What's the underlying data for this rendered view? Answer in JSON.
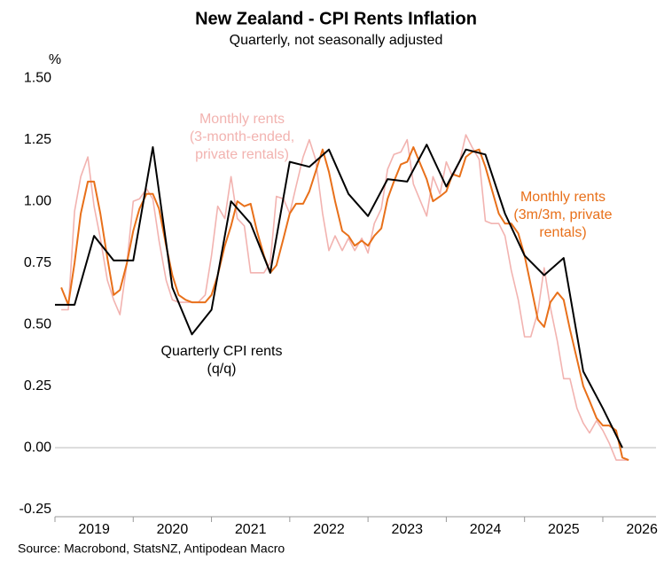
{
  "chart_data": {
    "type": "line",
    "title": "New Zealand - CPI Rents Inflation",
    "subtitle": "Quarterly, not seasonally adjusted",
    "y_label": "%",
    "source": "Source: Macrobond, StatsNZ, Antipodean Macro",
    "xlim": [
      2019,
      2026.68
    ],
    "xticks": [
      {
        "value": 2019.5,
        "label": "2019"
      },
      {
        "value": 2020.5,
        "label": "2020"
      },
      {
        "value": 2021.5,
        "label": "2021"
      },
      {
        "value": 2022.5,
        "label": "2022"
      },
      {
        "value": 2023.5,
        "label": "2023"
      },
      {
        "value": 2024.5,
        "label": "2024"
      },
      {
        "value": 2025.5,
        "label": "2025"
      },
      {
        "value": 2026.5,
        "label": "2026"
      }
    ],
    "ylim": [
      -0.28,
      1.54
    ],
    "yticks": [
      {
        "value": 1.5,
        "label": "1.50"
      },
      1.25,
      {
        "value": 1.0,
        "label": "1.00"
      },
      0.75,
      {
        "value": 0.5,
        "label": "0.50"
      },
      0.25,
      {
        "value": 0,
        "label": "0.00"
      },
      -0.25
    ],
    "zero_line": true,
    "series": [
      {
        "name": "Monthly rents (3-month-ended, private rentals)",
        "color": "#f2b3b0",
        "width": 1.6,
        "x": [
          2019.08,
          2019.17,
          2019.25,
          2019.33,
          2019.42,
          2019.5,
          2019.58,
          2019.67,
          2019.75,
          2019.83,
          2019.92,
          2020,
          2020.08,
          2020.17,
          2020.25,
          2020.33,
          2020.42,
          2020.5,
          2020.58,
          2020.67,
          2020.75,
          2020.83,
          2020.92,
          2021,
          2021.08,
          2021.17,
          2021.25,
          2021.33,
          2021.42,
          2021.5,
          2021.58,
          2021.67,
          2021.75,
          2021.83,
          2021.92,
          2022,
          2022.08,
          2022.17,
          2022.25,
          2022.33,
          2022.42,
          2022.5,
          2022.58,
          2022.67,
          2022.75,
          2022.83,
          2022.92,
          2023,
          2023.08,
          2023.17,
          2023.25,
          2023.33,
          2023.42,
          2023.5,
          2023.58,
          2023.67,
          2023.75,
          2023.83,
          2023.92,
          2024,
          2024.08,
          2024.17,
          2024.25,
          2024.33,
          2024.42,
          2024.5,
          2024.58,
          2024.67,
          2024.75,
          2024.83,
          2024.92,
          2025,
          2025.08,
          2025.17,
          2025.25,
          2025.33,
          2025.42,
          2025.5,
          2025.58,
          2025.67,
          2025.75,
          2025.83,
          2025.92,
          2026,
          2026.08,
          2026.17,
          2026.25,
          2026.33
        ],
        "values": [
          0.56,
          0.56,
          0.96,
          1.1,
          1.18,
          0.98,
          0.85,
          0.68,
          0.6,
          0.54,
          0.75,
          1.0,
          1.01,
          1.05,
          1.01,
          0.84,
          0.68,
          0.6,
          0.59,
          0.59,
          0.59,
          0.59,
          0.62,
          0.78,
          0.98,
          0.93,
          1.1,
          0.93,
          0.9,
          0.71,
          0.71,
          0.71,
          0.75,
          1.02,
          1.01,
          0.95,
          1.06,
          1.18,
          1.25,
          1.17,
          0.95,
          0.8,
          0.86,
          0.8,
          0.85,
          0.8,
          0.85,
          0.79,
          0.91,
          0.97,
          1.13,
          1.19,
          1.2,
          1.25,
          1.07,
          1.0,
          0.94,
          1.1,
          1.03,
          1.16,
          1.1,
          1.16,
          1.27,
          1.22,
          1.17,
          0.92,
          0.91,
          0.91,
          0.86,
          0.72,
          0.6,
          0.45,
          0.45,
          0.55,
          0.73,
          0.57,
          0.43,
          0.28,
          0.28,
          0.16,
          0.1,
          0.06,
          0.11,
          0.07,
          0.02,
          -0.05,
          -0.05,
          -0.05
        ]
      },
      {
        "name": "Monthly rents (3m/3m, private rentals)",
        "color": "#e8701a",
        "width": 2,
        "x": [
          2019.08,
          2019.17,
          2019.25,
          2019.33,
          2019.42,
          2019.5,
          2019.58,
          2019.67,
          2019.75,
          2019.83,
          2019.92,
          2020,
          2020.08,
          2020.17,
          2020.25,
          2020.33,
          2020.42,
          2020.5,
          2020.58,
          2020.67,
          2020.75,
          2020.83,
          2020.92,
          2021,
          2021.08,
          2021.17,
          2021.25,
          2021.33,
          2021.42,
          2021.5,
          2021.58,
          2021.67,
          2021.75,
          2021.83,
          2021.92,
          2022,
          2022.08,
          2022.17,
          2022.25,
          2022.33,
          2022.42,
          2022.5,
          2022.58,
          2022.67,
          2022.75,
          2022.83,
          2022.92,
          2023,
          2023.08,
          2023.17,
          2023.25,
          2023.33,
          2023.42,
          2023.5,
          2023.58,
          2023.67,
          2023.75,
          2023.83,
          2023.92,
          2024,
          2024.08,
          2024.17,
          2024.25,
          2024.33,
          2024.42,
          2024.5,
          2024.58,
          2024.67,
          2024.75,
          2024.83,
          2024.92,
          2025,
          2025.08,
          2025.17,
          2025.25,
          2025.33,
          2025.42,
          2025.5,
          2025.58,
          2025.67,
          2025.75,
          2025.83,
          2025.92,
          2026,
          2026.08,
          2026.17,
          2026.25,
          2026.33
        ],
        "values": [
          0.65,
          0.58,
          0.75,
          0.95,
          1.08,
          1.08,
          0.95,
          0.77,
          0.62,
          0.64,
          0.75,
          0.88,
          0.97,
          1.03,
          1.03,
          0.97,
          0.82,
          0.7,
          0.62,
          0.6,
          0.59,
          0.59,
          0.59,
          0.62,
          0.7,
          0.82,
          0.9,
          1.0,
          0.98,
          0.99,
          0.88,
          0.78,
          0.71,
          0.74,
          0.85,
          0.95,
          0.99,
          0.99,
          1.04,
          1.12,
          1.21,
          1.12,
          1.0,
          0.88,
          0.86,
          0.82,
          0.84,
          0.82,
          0.86,
          0.89,
          1.01,
          1.08,
          1.15,
          1.16,
          1.22,
          1.15,
          1.09,
          1.0,
          1.02,
          1.04,
          1.11,
          1.1,
          1.18,
          1.2,
          1.21,
          1.14,
          1.05,
          0.95,
          0.91,
          0.91,
          0.87,
          0.78,
          0.66,
          0.52,
          0.49,
          0.59,
          0.63,
          0.6,
          0.48,
          0.36,
          0.25,
          0.19,
          0.12,
          0.09,
          0.09,
          0.07,
          -0.04,
          -0.05
        ]
      },
      {
        "name": "Quarterly CPI rents (q/q)",
        "color": "#000000",
        "width": 2,
        "x": [
          2019,
          2019.25,
          2019.5,
          2019.75,
          2020,
          2020.25,
          2020.5,
          2020.75,
          2021,
          2021.25,
          2021.5,
          2021.75,
          2022,
          2022.25,
          2022.5,
          2022.75,
          2023,
          2023.25,
          2023.5,
          2023.75,
          2024,
          2024.25,
          2024.5,
          2024.75,
          2025,
          2025.25,
          2025.5,
          2025.75,
          2026,
          2026.25
        ],
        "values": [
          0.58,
          0.58,
          0.86,
          0.76,
          0.76,
          1.22,
          0.65,
          0.46,
          0.56,
          1.0,
          0.91,
          0.71,
          1.16,
          1.14,
          1.21,
          1.03,
          0.94,
          1.09,
          1.08,
          1.23,
          1.06,
          1.21,
          1.19,
          0.95,
          0.78,
          0.7,
          0.77,
          0.31,
          0.16,
          0.0
        ]
      }
    ],
    "annotations": [
      {
        "lines": [
          "Monthly rents",
          "(3-month-ended,",
          "private rentals)"
        ],
        "color": "#f2b3b0"
      },
      {
        "lines": [
          "Monthly rents",
          "(3m/3m, private",
          "rentals)"
        ],
        "color": "#e8701a"
      },
      {
        "lines": [
          "Quarterly CPI rents",
          "(q/q)"
        ],
        "color": "#000000"
      }
    ]
  }
}
